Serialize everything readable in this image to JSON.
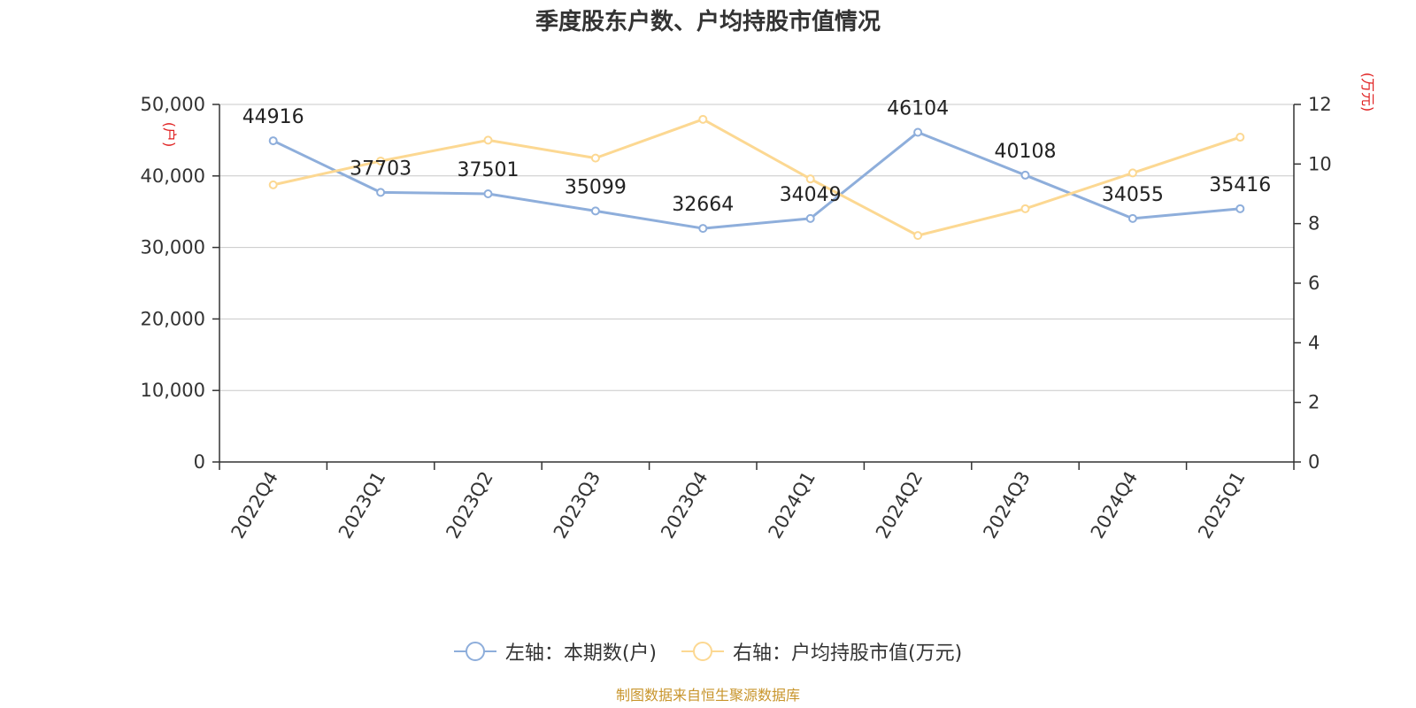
{
  "title": "季度股东户数、户均持股市值情况",
  "source": "制图数据来自恒生聚源数据库",
  "colors": {
    "left_series": "#8eaedb",
    "right_series": "#fcd892",
    "axis_unit": "#e02020",
    "grid": "#c8c8c8",
    "axis": "#333333"
  },
  "chart_data": {
    "type": "line",
    "categories": [
      "2022Q4",
      "2023Q1",
      "2023Q2",
      "2023Q3",
      "2023Q4",
      "2024Q1",
      "2024Q2",
      "2024Q3",
      "2024Q4",
      "2025Q1"
    ],
    "y_left": {
      "unit_label": "(户)",
      "ylim": [
        0,
        50000
      ],
      "ticks": [
        0,
        10000,
        20000,
        30000,
        40000,
        50000
      ],
      "tick_labels": [
        "0",
        "10,000",
        "20,000",
        "30,000",
        "40,000",
        "50,000"
      ]
    },
    "y_right": {
      "unit_label": "(万元)",
      "ylim": [
        0,
        12
      ],
      "ticks": [
        0,
        2,
        4,
        6,
        8,
        10,
        12
      ],
      "tick_labels": [
        "0",
        "2",
        "4",
        "6",
        "8",
        "10",
        "12"
      ]
    },
    "grid": true,
    "legend_position": "bottom-center",
    "series": [
      {
        "name": "左轴：本期数(户)",
        "axis": "left",
        "values": [
          44916,
          37703,
          37501,
          35099,
          32664,
          34049,
          46104,
          40108,
          34055,
          35416
        ],
        "data_labels": [
          "44916",
          "37703",
          "37501",
          "35099",
          "32664",
          "34049",
          "46104",
          "40108",
          "34055",
          "35416"
        ]
      },
      {
        "name": "右轴：户均持股市值(万元)",
        "axis": "right",
        "values": [
          9.3,
          10.1,
          10.8,
          10.2,
          11.5,
          9.5,
          7.6,
          8.5,
          9.7,
          10.9
        ]
      }
    ]
  }
}
